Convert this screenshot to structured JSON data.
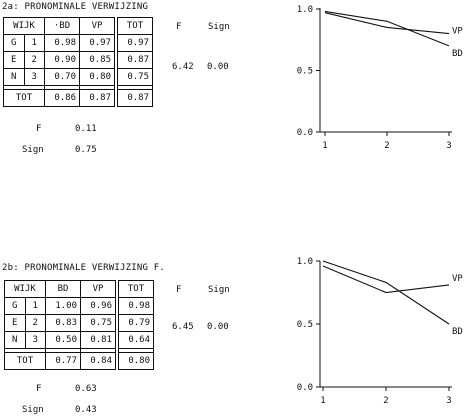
{
  "panels": [
    {
      "heading": "2a: PRONOMINALE VERWIJZING",
      "table": {
        "headers": [
          "WIJK",
          "BD",
          "VP",
          "TOT"
        ],
        "bd_prefix": "·",
        "rows": [
          {
            "letter": "G",
            "num": "1",
            "bd": "0.98",
            "vp": "0.97",
            "tot": "0.97"
          },
          {
            "letter": "E",
            "num": "2",
            "bd": "0.90",
            "vp": "0.85",
            "tot": "0.87"
          },
          {
            "letter": "N",
            "num": "3",
            "bd": "0.70",
            "vp": "0.80",
            "tot": "0.75"
          }
        ],
        "total": {
          "label": "TOT",
          "bd": "0.86",
          "vp": "0.87",
          "tot": "0.87"
        }
      },
      "stats": {
        "f_label": "F",
        "f_value": "6.42",
        "sign_label": "Sign",
        "sign_value": "0.00"
      },
      "below": {
        "f_label": "F",
        "f_value": "0.11",
        "sign_label": "Sign",
        "sign_value": "0.75"
      }
    },
    {
      "heading": "2b: PRONOMINALE VERWIJZING F.",
      "table": {
        "headers": [
          "WIJK",
          "BD",
          "VP",
          "TOT"
        ],
        "bd_prefix": "",
        "rows": [
          {
            "letter": "G",
            "num": "1",
            "bd": "1.00",
            "vp": "0.96",
            "tot": "0.98"
          },
          {
            "letter": "E",
            "num": "2",
            "bd": "0.83",
            "vp": "0.75",
            "tot": "0.79"
          },
          {
            "letter": "N",
            "num": "3",
            "bd": "0.50",
            "vp": "0.81",
            "tot": "0.64"
          }
        ],
        "total": {
          "label": "TOT",
          "bd": "0.77",
          "vp": "0.84",
          "tot": "0.80"
        }
      },
      "stats": {
        "f_label": "F",
        "f_value": "6.45",
        "sign_label": "Sign",
        "sign_value": "0.00"
      },
      "below": {
        "f_label": "F",
        "f_value": "0.63",
        "sign_label": "Sign",
        "sign_value": "0.43"
      }
    }
  ],
  "chart_data": [
    {
      "type": "line",
      "x": [
        1,
        2,
        3
      ],
      "ylim": [
        0.0,
        1.0
      ],
      "yticks": [
        "0.0",
        "0.5",
        "1.0"
      ],
      "xticks": [
        "1",
        "2",
        "3"
      ],
      "series": [
        {
          "name": "BD",
          "values": [
            0.98,
            0.9,
            0.7
          ]
        },
        {
          "name": "VP",
          "values": [
            0.97,
            0.85,
            0.8
          ]
        }
      ]
    },
    {
      "type": "line",
      "x": [
        1,
        2,
        3
      ],
      "ylim": [
        0.0,
        1.0
      ],
      "yticks": [
        "0.0",
        "0.5",
        "1.0"
      ],
      "xticks": [
        "1",
        "2",
        "3"
      ],
      "series": [
        {
          "name": "VP",
          "values": [
            0.96,
            0.75,
            0.81
          ]
        },
        {
          "name": "BD",
          "values": [
            1.0,
            0.83,
            0.5
          ]
        }
      ]
    }
  ]
}
